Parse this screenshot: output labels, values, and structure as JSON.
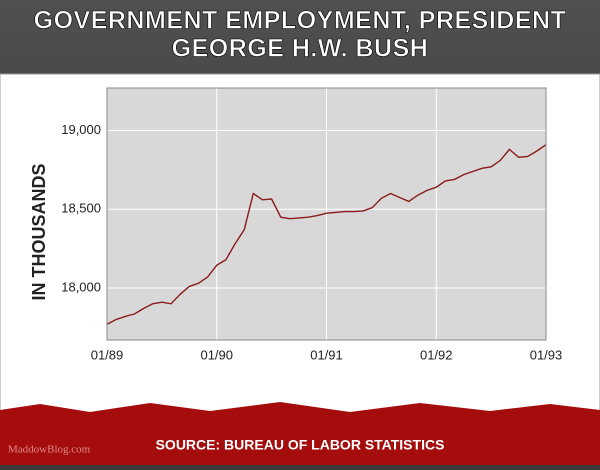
{
  "chart_data": {
    "type": "line",
    "title_lines": [
      "GOVERNMENT EMPLOYMENT, PRESIDENT",
      "GEORGE H.W. BUSH"
    ],
    "y_label": "IN THOUSANDS",
    "source": "SOURCE: BUREAU OF LABOR STATISTICS",
    "watermark": "MaddowBlog.com",
    "categories": [
      "01/89",
      null,
      null,
      null,
      null,
      null,
      null,
      null,
      null,
      null,
      null,
      null,
      "01/90",
      null,
      null,
      null,
      null,
      null,
      null,
      null,
      null,
      null,
      null,
      null,
      "01/91",
      null,
      null,
      null,
      null,
      null,
      null,
      null,
      null,
      null,
      null,
      null,
      "01/92",
      null,
      null,
      null,
      null,
      null,
      null,
      null,
      null,
      null,
      null,
      null,
      "01/93"
    ],
    "series": [
      {
        "name": "Government employment",
        "color": "#8b1a1a",
        "values": [
          17770,
          17800,
          17820,
          17835,
          17870,
          17900,
          17910,
          17900,
          17960,
          18010,
          18030,
          18070,
          18145,
          18180,
          18280,
          18370,
          18600,
          18560,
          18565,
          18450,
          18440,
          18445,
          18450,
          18460,
          18475,
          18480,
          18485,
          18485,
          18490,
          18510,
          18570,
          18600,
          18575,
          18550,
          18590,
          18620,
          18640,
          18680,
          18690,
          18720,
          18740,
          18760,
          18770,
          18810,
          18880,
          18830,
          18835,
          18870,
          18910
        ]
      }
    ],
    "ylim": [
      17670,
      19270
    ],
    "yticks": [
      {
        "value": 18000,
        "label": "18,000"
      },
      {
        "value": 18500,
        "label": "18,500"
      },
      {
        "value": 19000,
        "label": "19,000"
      }
    ],
    "grid": true
  }
}
